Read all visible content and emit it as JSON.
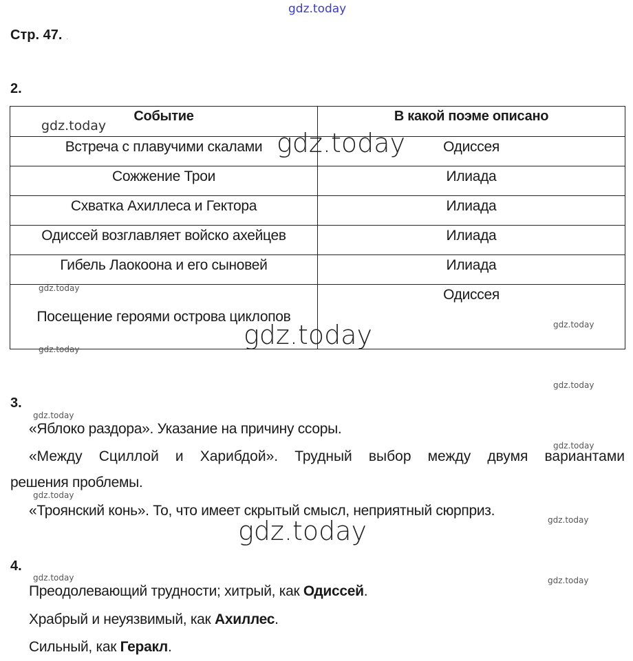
{
  "watermark": "gdz.today",
  "page_title": "Стр. 47.",
  "page_title_suffix": ".",
  "task2": {
    "number": "2.",
    "headers": [
      "Событие",
      "В какой поэме описано"
    ],
    "rows": [
      {
        "event": "Встреча с плавучими скалами",
        "poem": "Одиссея"
      },
      {
        "event": "Сожжение Трои",
        "poem": "Илиада"
      },
      {
        "event": "Схватка Ахиллеса и Гектора",
        "poem": "Илиада"
      },
      {
        "event": "Одиссей возглавляет войско ахейцев",
        "poem": "Илиада"
      },
      {
        "event": "Гибель Лаокоона и его сыновей",
        "poem": "Илиада"
      },
      {
        "event": "Посещение героями острова циклопов",
        "poem": "Одиссея"
      }
    ]
  },
  "task3": {
    "number": "3.",
    "line1": "«Яблоко раздора». Указание на причину ссоры.",
    "line2": "«Между Сциллой и Харибдой». Трудный выбор между двумя вариантами",
    "line2_cont": "решения проблемы.",
    "line3": "«Троянский конь». То, что имеет скрытый смысл, неприятный сюрприз."
  },
  "task4": {
    "number": "4.",
    "items": [
      {
        "text": "Преодолевающий трудности; хитрый, как ",
        "bold": "Одиссей",
        "end": "."
      },
      {
        "text": "Храбрый и неуязвимый, как ",
        "bold": "Ахиллес",
        "end": "."
      },
      {
        "text": "Сильный, как ",
        "bold": "Геракл",
        "end": "."
      }
    ]
  }
}
